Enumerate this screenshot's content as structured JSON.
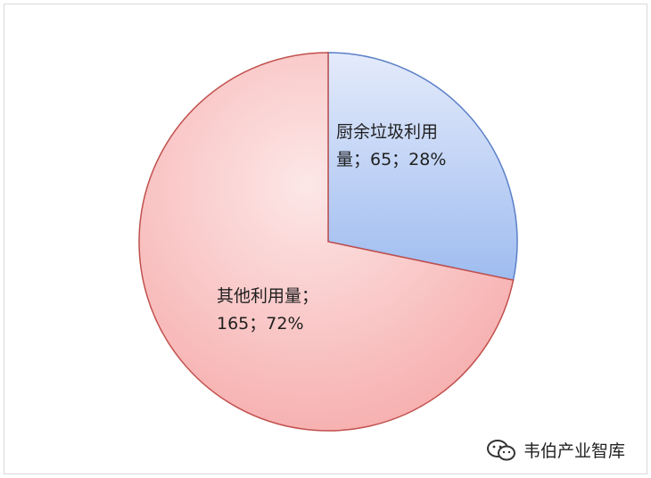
{
  "chart_data": {
    "type": "pie",
    "title": "",
    "slices": [
      {
        "label": "厨余垃圾利用量",
        "value": 65,
        "percent": "28%",
        "color": "#a8c4f2",
        "edge": "#5b7fc7"
      },
      {
        "label": "其他利用量",
        "value": 165,
        "percent": "72%",
        "color": "#f6b2b2",
        "edge": "#c0504d"
      }
    ],
    "data_labels": [
      {
        "line1": "厨余垃圾利用",
        "line2": "量；65；28%"
      },
      {
        "line1": "其他利用量；",
        "line2": "165；72%"
      }
    ]
  },
  "watermark": {
    "text": "韦伯产业智库",
    "icon": "wechat-icon"
  }
}
